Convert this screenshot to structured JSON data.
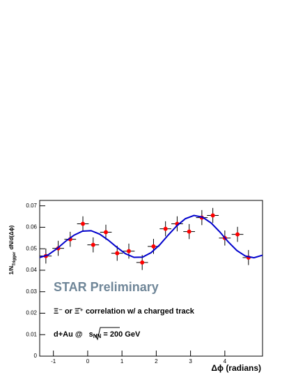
{
  "chart_data": {
    "type": "scatter",
    "x_label": "Δϕ (radians)",
    "y_label": {
      "main": "1/N",
      "sub": "Trigger",
      "rest": "dN/d(Δϕ)"
    },
    "annotations": {
      "watermark": "STAR Preliminary",
      "correlation": "Ξ⁻ or Ξ̄⁺ correlation w/ a charged track",
      "system": {
        "prefix": "d+Au @",
        "s": "s",
        "sub": "NN",
        "suffix": "= 200 GeV"
      }
    },
    "xlim": [
      -1.4,
      5.1
    ],
    "ylim": [
      0,
      0.0725
    ],
    "xticks": [
      -1,
      0,
      1,
      2,
      3,
      4
    ],
    "yticks": [
      0,
      0.01,
      0.02,
      0.03,
      0.04,
      0.05,
      0.06,
      0.07
    ],
    "series": [
      {
        "name": "data",
        "color": "#ff0000",
        "x": [
          -1.22,
          -0.86,
          -0.51,
          -0.14,
          0.16,
          0.53,
          0.86,
          1.2,
          1.59,
          1.92,
          2.27,
          2.61,
          2.96,
          3.33,
          3.65,
          4.0,
          4.37,
          4.69
        ],
        "values": [
          0.0466,
          0.0502,
          0.0544,
          0.0616,
          0.0518,
          0.0577,
          0.0479,
          0.0489,
          0.0436,
          0.0511,
          0.0593,
          0.0616,
          0.058,
          0.0645,
          0.0655,
          0.055,
          0.0567,
          0.0459
        ],
        "errors": [
          0.0035,
          0.0035,
          0.0035,
          0.0035,
          0.0035,
          0.0035,
          0.0035,
          0.0035,
          0.0035,
          0.0035,
          0.0035,
          0.0035,
          0.0035,
          0.0035,
          0.0035,
          0.0035,
          0.0035,
          0.0035
        ],
        "xerr": 0.17
      },
      {
        "name": "fit",
        "color": "#0000cc",
        "line": true,
        "x": [
          -1.4,
          -1.15,
          -0.9,
          -0.65,
          -0.4,
          -0.15,
          0.1,
          0.35,
          0.6,
          0.85,
          1.1,
          1.35,
          1.6,
          1.85,
          2.1,
          2.35,
          2.6,
          2.85,
          3.1,
          3.35,
          3.6,
          3.85,
          4.1,
          4.35,
          4.6,
          4.85,
          5.1
        ],
        "values": [
          0.0459,
          0.0472,
          0.05,
          0.0534,
          0.0563,
          0.0582,
          0.0584,
          0.0568,
          0.054,
          0.0507,
          0.0477,
          0.046,
          0.0461,
          0.0482,
          0.0518,
          0.0564,
          0.0607,
          0.064,
          0.0655,
          0.0647,
          0.062,
          0.0579,
          0.0532,
          0.0492,
          0.0466,
          0.0458,
          0.047
        ]
      }
    ]
  }
}
